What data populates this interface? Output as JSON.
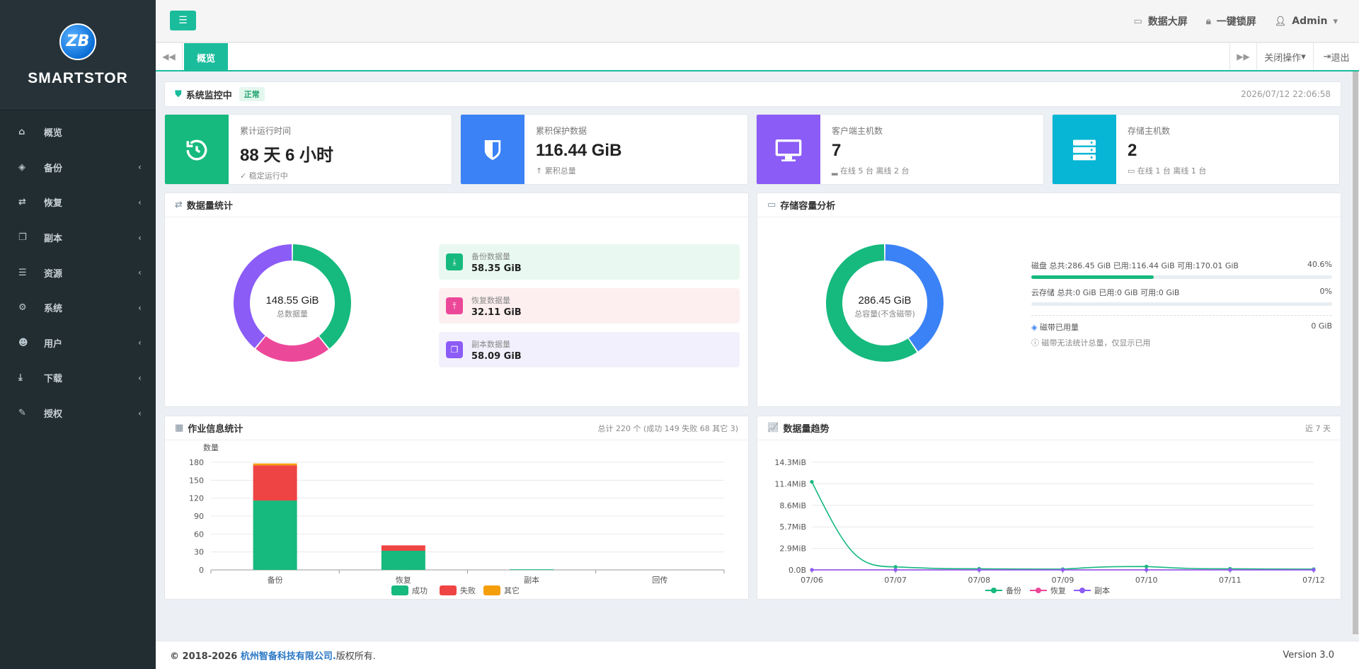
{
  "brand": {
    "logo_text": "ZB",
    "name": "SMARTSTOR"
  },
  "menu": [
    {
      "label": "概览",
      "icon": "home-icon",
      "glyph": "⌂",
      "has_caret": false
    },
    {
      "label": "备份",
      "icon": "cube-icon",
      "glyph": "◈",
      "has_caret": true
    },
    {
      "label": "恢复",
      "icon": "retweet-icon",
      "glyph": "⇄",
      "has_caret": true
    },
    {
      "label": "副本",
      "icon": "copy-icon",
      "glyph": "❐",
      "has_caret": true
    },
    {
      "label": "资源",
      "icon": "server-icon",
      "glyph": "☰",
      "has_caret": true
    },
    {
      "label": "系统",
      "icon": "cogs-icon",
      "glyph": "⚙",
      "has_caret": true
    },
    {
      "label": "用户",
      "icon": "users-icon",
      "glyph": "☻",
      "has_caret": true
    },
    {
      "label": "下载",
      "icon": "download-icon",
      "glyph": "⤓",
      "has_caret": true
    },
    {
      "label": "授权",
      "icon": "edit-icon",
      "glyph": "✎",
      "has_caret": true
    }
  ],
  "topbar": {
    "big_screen": "数据大屏",
    "lock": "一键锁屏",
    "user": "Admin"
  },
  "tabs": {
    "active": "概览",
    "close_ops": "关闭操作",
    "exit": "退出"
  },
  "status": {
    "title": "系统监控中",
    "badge": "正常",
    "time": "2026/07/12 22:06:58"
  },
  "stats": [
    {
      "label": "累计运行时间",
      "value": "88 天 6 小时",
      "sub": "稳定运行中",
      "sub_icon": "✓",
      "color": "#16b97e",
      "icon": "history-icon"
    },
    {
      "label": "累积保护数据",
      "value": "116.44 GiB",
      "sub": "累积总量",
      "sub_icon": "↑",
      "color": "#3b82f6",
      "icon": "shield-icon"
    },
    {
      "label": "客户端主机数",
      "value": "7",
      "sub": "在线 5 台 离线 2 台",
      "sub_icon": "▂",
      "color": "#8b5cf6",
      "icon": "desktop-icon"
    },
    {
      "label": "存储主机数",
      "value": "2",
      "sub": "在线 1 台 离线 1 台",
      "sub_icon": "▭",
      "color": "#06b6d4",
      "icon": "storage-icon"
    }
  ],
  "data_stats": {
    "title": "数据量统计",
    "center_value": "148.55 GiB",
    "center_label": "总数据量",
    "items": [
      {
        "label": "备份数据量",
        "value": "58.35 GiB",
        "num": 58.35,
        "color": "#16b97e",
        "bg": "#e9f9f1",
        "glyph": "⤓"
      },
      {
        "label": "恢复数据量",
        "value": "32.11 GiB",
        "num": 32.11,
        "color": "#ec4899",
        "bg": "#fdeff0",
        "glyph": "⤒"
      },
      {
        "label": "副本数据量",
        "value": "58.09 GiB",
        "num": 58.09,
        "color": "#8b5cf6",
        "bg": "#f3f0fd",
        "glyph": "❐"
      }
    ]
  },
  "storage": {
    "title": "存储容量分析",
    "center_value": "286.45 GiB",
    "center_label": "总容量(不含磁带)",
    "used_fraction": 0.406,
    "used_color": "#3b82f6",
    "free_color": "#16b97e",
    "disk": {
      "label": "磁盘 总共:286.45 GiB 已用:116.44 GiB 可用:170.01 GiB",
      "pct": "40.6%",
      "fraction": 0.406
    },
    "cloud": {
      "label": "云存储 总共:0 GiB 已用:0 GiB 可用:0 GiB",
      "pct": "0%",
      "fraction": 0
    },
    "tape": {
      "label": "磁带已用量",
      "value": "0 GiB",
      "note": "磁带无法统计总量，仅显示已用"
    }
  },
  "jobs": {
    "title": "作业信息统计",
    "summary": "总计 220 个 (成功 149 失败 68 其它 3)"
  },
  "trend": {
    "title": "数据量趋势",
    "range": "近 7 天"
  },
  "chart_data": [
    {
      "type": "bar",
      "stacked": true,
      "ylabel": "数量",
      "ylim": [
        0,
        180
      ],
      "yticks": [
        0,
        30,
        60,
        90,
        120,
        150,
        180
      ],
      "categories": [
        "备份",
        "恢复",
        "副本",
        "回传"
      ],
      "series": [
        {
          "name": "成功",
          "color": "#16b97e",
          "values": [
            116,
            32,
            1,
            0
          ]
        },
        {
          "name": "失败",
          "color": "#ef4444",
          "values": [
            59,
            9,
            0,
            0
          ]
        },
        {
          "name": "其它",
          "color": "#f59e0b",
          "values": [
            3,
            0,
            0,
            0
          ]
        }
      ]
    },
    {
      "type": "line",
      "yticks": [
        "0.0B",
        "2.9MiB",
        "5.7MiB",
        "8.6MiB",
        "11.4MiB",
        "14.3MiB"
      ],
      "ylim": [
        0,
        14.3
      ],
      "x": [
        "07/06",
        "07/07",
        "07/08",
        "07/09",
        "07/10",
        "07/11",
        "07/12"
      ],
      "series": [
        {
          "name": "备份",
          "color": "#16b97e",
          "values": [
            11.7,
            0.4,
            0.15,
            0.1,
            0.45,
            0.15,
            0.1
          ]
        },
        {
          "name": "恢复",
          "color": "#ec4899",
          "values": [
            0,
            0,
            0,
            0,
            0,
            0,
            0
          ]
        },
        {
          "name": "副本",
          "color": "#8b5cf6",
          "values": [
            0,
            0,
            0,
            0,
            0,
            0,
            0
          ]
        }
      ]
    }
  ],
  "footer": {
    "copy": "© 2018-2026 ",
    "company": "杭州智备科技有限公司.",
    "rights": " 版权所有.",
    "version": "Version 3.0"
  }
}
